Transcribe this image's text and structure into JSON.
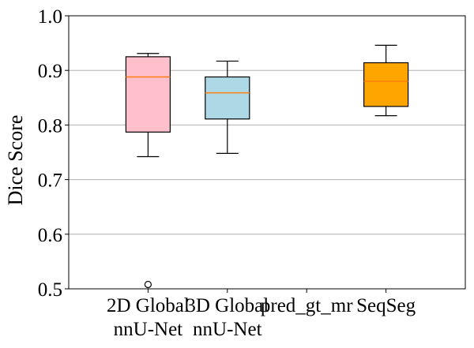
{
  "chart_data": {
    "type": "box",
    "title": "",
    "xlabel": "",
    "ylabel": "Dice Score",
    "ylim": [
      0.5,
      1.0
    ],
    "yticks": [
      0.5,
      0.6,
      0.7,
      0.8,
      0.9,
      1.0
    ],
    "ytick_labels": [
      "0.5",
      "0.6",
      "0.7",
      "0.8",
      "0.9",
      "1.0"
    ],
    "grid": "horizontal",
    "categories": [
      [
        "2D Global",
        "nnU-Net"
      ],
      [
        "3D Global",
        "nnU-Net"
      ],
      [
        "pred_gt_mr"
      ],
      [
        "SeqSeg"
      ]
    ],
    "boxes": [
      {
        "whisker_low": 0.742,
        "q1": 0.787,
        "median": 0.888,
        "q3": 0.925,
        "whisker_high": 0.931,
        "outliers": [
          0.508
        ],
        "color": "#ffc0cb"
      },
      {
        "whisker_low": 0.748,
        "q1": 0.811,
        "median": 0.859,
        "q3": 0.888,
        "whisker_high": 0.917,
        "outliers": [],
        "color": "#add8e6"
      },
      null,
      {
        "whisker_low": 0.817,
        "q1": 0.834,
        "median": 0.88,
        "q3": 0.914,
        "whisker_high": 0.946,
        "outliers": [],
        "color": "#ffa500"
      }
    ],
    "median_color": "#ff7f0e",
    "grid_color": "#b0b0b0"
  }
}
